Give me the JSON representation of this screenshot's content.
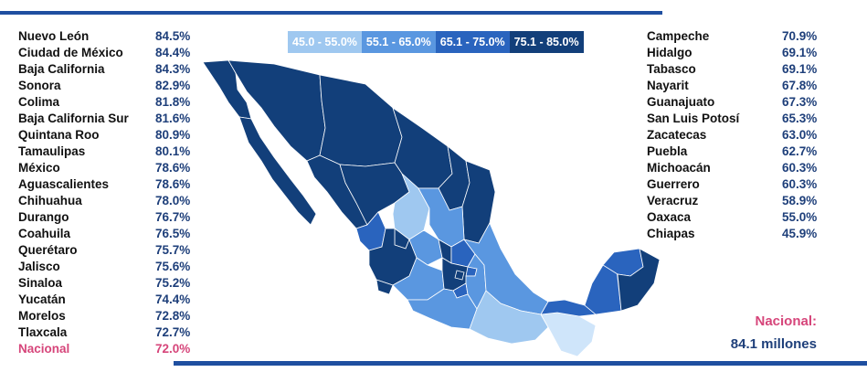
{
  "left_states": [
    {
      "name": "Nuevo León",
      "pct": "84.5%"
    },
    {
      "name": "Ciudad de México",
      "pct": "84.4%"
    },
    {
      "name": "Baja California",
      "pct": "84.3%"
    },
    {
      "name": "Sonora",
      "pct": "82.9%"
    },
    {
      "name": "Colima",
      "pct": "81.8%"
    },
    {
      "name": "Baja California Sur",
      "pct": "81.6%"
    },
    {
      "name": "Quintana Roo",
      "pct": "80.9%"
    },
    {
      "name": "Tamaulipas",
      "pct": "80.1%"
    },
    {
      "name": "México",
      "pct": "78.6%"
    },
    {
      "name": "Aguascalientes",
      "pct": "78.6%"
    },
    {
      "name": "Chihuahua",
      "pct": "78.0%"
    },
    {
      "name": "Durango",
      "pct": "76.7%"
    },
    {
      "name": "Coahuila",
      "pct": "76.5%"
    },
    {
      "name": "Querétaro",
      "pct": "75.7%"
    },
    {
      "name": "Jalisco",
      "pct": "75.6%"
    },
    {
      "name": "Sinaloa",
      "pct": "75.2%"
    },
    {
      "name": "Yucatán",
      "pct": "74.4%"
    },
    {
      "name": "Morelos",
      "pct": "72.8%"
    },
    {
      "name": "Tlaxcala",
      "pct": "72.7%"
    },
    {
      "name": "Nacional",
      "pct": "72.0%",
      "highlight": true
    }
  ],
  "right_states": [
    {
      "name": "Campeche",
      "pct": "70.9%"
    },
    {
      "name": "Hidalgo",
      "pct": "69.1%"
    },
    {
      "name": "Tabasco",
      "pct": "69.1%"
    },
    {
      "name": "Nayarit",
      "pct": "67.8%"
    },
    {
      "name": "Guanajuato",
      "pct": "67.3%"
    },
    {
      "name": "San Luis Potosí",
      "pct": "65.3%"
    },
    {
      "name": "Zacatecas",
      "pct": "63.0%"
    },
    {
      "name": "Puebla",
      "pct": "62.7%"
    },
    {
      "name": "Michoacán",
      "pct": "60.3%"
    },
    {
      "name": "Guerrero",
      "pct": "60.3%"
    },
    {
      "name": "Veracruz",
      "pct": "58.9%"
    },
    {
      "name": "Oaxaca",
      "pct": "55.0%"
    },
    {
      "name": "Chiapas",
      "pct": "45.9%"
    }
  ],
  "legend": [
    {
      "label": "45.0 - 55.0%",
      "color": "#9fc8f0"
    },
    {
      "label": "55.1 - 65.0%",
      "color": "#5a97e0"
    },
    {
      "label": "65.1 - 75.0%",
      "color": "#2a64be"
    },
    {
      "label": "75.1 - 85.0%",
      "color": "#123f7a"
    }
  ],
  "nacional": {
    "label": "Nacional:",
    "value": "84.1 millones"
  }
}
